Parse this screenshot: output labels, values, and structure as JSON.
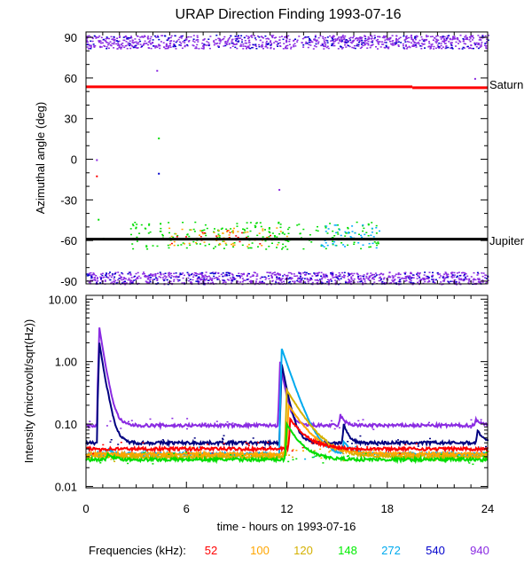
{
  "chart_data": [
    {
      "type": "scatter",
      "title": "URAP Direction Finding  1993-07-16",
      "ylabel": "Azimuthal angle (deg)",
      "xlim": [
        0,
        24
      ],
      "ylim": [
        -92,
        94
      ],
      "yticks": [
        90,
        60,
        30,
        0,
        -30,
        -60,
        -90
      ],
      "reference_lines": [
        {
          "name": "Saturn",
          "color": "#ff0000",
          "segments": [
            [
              0,
              53.5,
              19.5,
              53.5
            ],
            [
              19.5,
              52.8,
              24,
              52.8
            ]
          ]
        },
        {
          "name": "Jupiter",
          "color": "#000000",
          "segments": [
            [
              0,
              -59,
              24,
              -59
            ]
          ]
        }
      ],
      "series": [
        {
          "name": "940 kHz",
          "color": "#8a2be2",
          "bands": [
            {
              "xmin": 0,
              "xmax": 24,
              "ymin": 82,
              "ymax": 92,
              "count": 900
            },
            {
              "xmin": 0,
              "xmax": 24,
              "ymin": -92,
              "ymax": -83,
              "count": 900
            }
          ]
        },
        {
          "name": "540 kHz",
          "color": "#0000cd",
          "bands": [
            {
              "xmin": 0,
              "xmax": 24,
              "ymin": 82,
              "ymax": 92,
              "count": 150
            },
            {
              "xmin": 0,
              "xmax": 24,
              "ymin": -92,
              "ymax": -83,
              "count": 180
            }
          ]
        },
        {
          "name": "148 kHz",
          "color": "#00dd00",
          "bands": [
            {
              "xmin": 2.5,
              "xmax": 17.5,
              "ymin": -66,
              "ymax": -46,
              "count": 230
            }
          ]
        },
        {
          "name": "100 kHz",
          "color": "#ffa500",
          "bands": [
            {
              "xmin": 4.5,
              "xmax": 12,
              "ymin": -64,
              "ymax": -50,
              "count": 60
            }
          ]
        },
        {
          "name": "52 kHz",
          "color": "#ff0000",
          "bands": [
            {
              "xmin": 5,
              "xmax": 11.5,
              "ymin": -62,
              "ymax": -52,
              "count": 25
            }
          ]
        },
        {
          "name": "272 kHz",
          "color": "#00aaff",
          "bands": [
            {
              "xmin": 14,
              "xmax": 17.5,
              "ymin": -65,
              "ymax": -48,
              "count": 50
            }
          ]
        }
      ],
      "scattered_points": [
        {
          "x": 0.6,
          "y": 0,
          "color": "#8a2be2"
        },
        {
          "x": 0.6,
          "y": -12,
          "color": "#ff0000"
        },
        {
          "x": 4.3,
          "y": 16,
          "color": "#00dd00"
        },
        {
          "x": 4.3,
          "y": -10,
          "color": "#0000cd"
        },
        {
          "x": 4.4,
          "y": -47,
          "color": "#00dd00"
        },
        {
          "x": 11.5,
          "y": -22,
          "color": "#8a2be2"
        },
        {
          "x": 0.7,
          "y": -44,
          "color": "#00dd00"
        },
        {
          "x": 1.0,
          "y": -58,
          "color": "#00dd00"
        },
        {
          "x": 4.2,
          "y": 66,
          "color": "#8a2be2"
        },
        {
          "x": 23.2,
          "y": 60,
          "color": "#8a2be2"
        }
      ]
    },
    {
      "type": "line",
      "ylabel": "Intensity (microvolt/sqrt(Hz))",
      "xlabel": "time - hours on 1993-07-16",
      "xlim": [
        0,
        24
      ],
      "ylim": [
        0.0095,
        11.5
      ],
      "yscale": "log",
      "xticks": [
        "0",
        "6",
        "12",
        "18",
        "24"
      ],
      "yticks": [
        "10.00",
        "1.00",
        "0.10",
        "0.01"
      ],
      "ytick_values": [
        10,
        1,
        0.1,
        0.01
      ],
      "series": [
        {
          "name": "940",
          "color": "#8a2be2",
          "base": 0.095,
          "events": [
            {
              "t": 0.8,
              "peak": 3.5,
              "tau": 0.25
            },
            {
              "t": 1.3,
              "peak": 0.12,
              "tau": 0.3
            },
            {
              "t": 11.6,
              "peak": 1.0,
              "tau": 0.25
            },
            {
              "t": 15.2,
              "peak": 0.14,
              "tau": 0.25
            },
            {
              "t": 23.3,
              "peak": 0.12,
              "tau": 0.3
            }
          ]
        },
        {
          "name": "540",
          "color": "#000080",
          "base": 0.05,
          "events": [
            {
              "t": 0.8,
              "peak": 2.0,
              "tau": 0.25
            },
            {
              "t": 1.3,
              "peak": 0.08,
              "tau": 0.3
            },
            {
              "t": 11.7,
              "peak": 0.9,
              "tau": 0.3
            },
            {
              "t": 15.4,
              "peak": 0.1,
              "tau": 0.25
            },
            {
              "t": 23.4,
              "peak": 0.08,
              "tau": 0.3
            }
          ]
        },
        {
          "name": "272",
          "color": "#00aaee",
          "base": 0.033,
          "events": [
            {
              "t": 11.7,
              "peak": 1.6,
              "tau": 0.55
            },
            {
              "t": 15.4,
              "peak": 0.05,
              "tau": 0.4
            },
            {
              "t": 1.3,
              "peak": 0.04,
              "tau": 0.3
            }
          ]
        },
        {
          "name": "120",
          "color": "#d4b000",
          "base": 0.03,
          "events": [
            {
              "t": 12.0,
              "peak": 0.35,
              "tau": 0.9
            }
          ]
        },
        {
          "name": "100",
          "color": "#ffa500",
          "base": 0.033,
          "events": [
            {
              "t": 12.1,
              "peak": 0.2,
              "tau": 0.9
            }
          ]
        },
        {
          "name": "52",
          "color": "#ff0000",
          "base": 0.04,
          "events": [
            {
              "t": 12.2,
              "peak": 0.12,
              "tau": 0.8
            }
          ]
        },
        {
          "name": "148",
          "color": "#00dd00",
          "base": 0.027,
          "events": [
            {
              "t": 12.0,
              "peak": 0.1,
              "tau": 0.7
            },
            {
              "t": 1.3,
              "peak": 0.035,
              "tau": 0.3
            }
          ]
        }
      ]
    }
  ],
  "legend": {
    "label": "Frequencies (kHz):",
    "items": [
      {
        "text": "52",
        "color": "#ff0000"
      },
      {
        "text": "100",
        "color": "#ffa500"
      },
      {
        "text": "120",
        "color": "#d4b000"
      },
      {
        "text": "148",
        "color": "#00ee00"
      },
      {
        "text": "272",
        "color": "#00aaee"
      },
      {
        "text": "540",
        "color": "#0000cd"
      },
      {
        "text": "940",
        "color": "#8a2be2"
      }
    ]
  }
}
